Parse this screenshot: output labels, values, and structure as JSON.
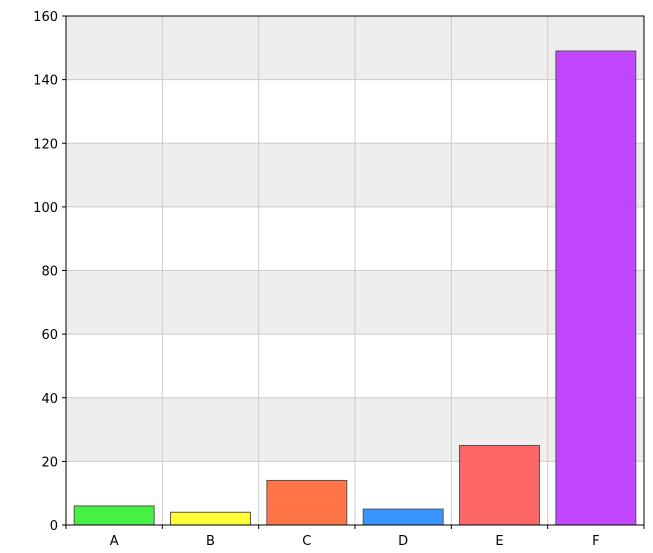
{
  "chart_data": {
    "type": "bar",
    "title": "",
    "xlabel": "",
    "ylabel": "",
    "categories": [
      "A",
      "B",
      "C",
      "D",
      "E",
      "F"
    ],
    "values": [
      6,
      4,
      14,
      5,
      25,
      149
    ],
    "colors": [
      "#33ee33",
      "#ffff22",
      "#ff6633",
      "#2288ff",
      "#ff5555",
      "#bb33ff"
    ],
    "ylim": [
      0,
      160
    ],
    "yticks": [
      0,
      20,
      40,
      60,
      80,
      100,
      120,
      140,
      160
    ],
    "grid": true,
    "legend": "none"
  }
}
